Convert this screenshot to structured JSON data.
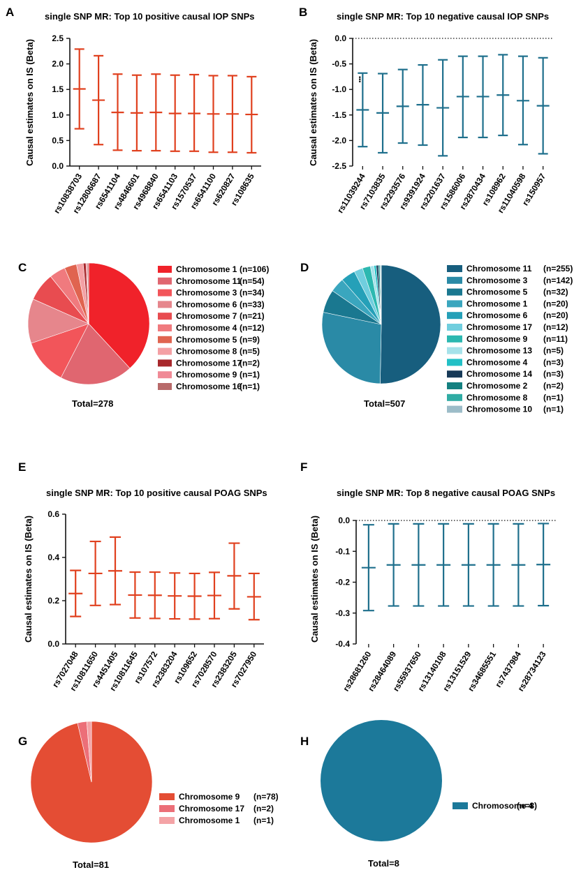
{
  "chart_data": [
    {
      "panel": "A",
      "type": "errorbar",
      "title": "single SNP MR: Top 10 positive causal IOP SNPs",
      "ylabel": "Causal estimates on IS (Beta)",
      "color": "#e0401e",
      "ylim": [
        0,
        2.5
      ],
      "yticks": [
        "2.5",
        "2.0",
        "1.5",
        "1.0",
        "0.5",
        "0.0"
      ],
      "categories": [
        "rs10838703",
        "rs12806687",
        "rs6541104",
        "rs4846601",
        "rs4968840",
        "rs6541103",
        "rs1570537",
        "rs6541100",
        "rs620827",
        "rs108635"
      ],
      "estimate": [
        1.51,
        1.29,
        1.05,
        1.04,
        1.05,
        1.03,
        1.03,
        1.02,
        1.02,
        1.01
      ],
      "lower": [
        0.73,
        0.42,
        0.31,
        0.3,
        0.3,
        0.29,
        0.29,
        0.27,
        0.27,
        0.26
      ],
      "upper": [
        2.29,
        2.16,
        1.8,
        1.78,
        1.8,
        1.78,
        1.79,
        1.77,
        1.77,
        1.75
      ]
    },
    {
      "panel": "B",
      "type": "errorbar",
      "title": "single SNP MR: Top 10 negative causal IOP SNPs",
      "ylabel": "Causal estimates on IS (Beta)",
      "color": "#1e6f8c",
      "ylim": [
        -2.5,
        0
      ],
      "yticks": [
        "0.0",
        "-0.5",
        "-1.0",
        "-1.5",
        "-2.0",
        "-2.5"
      ],
      "categories": [
        "rs11039244",
        "rs7103835",
        "rs2293576",
        "rs9391924",
        "rs2201637",
        "rs1586006",
        "rs2870434",
        "rs108962",
        "rs11040598",
        "rs150957"
      ],
      "estimate": [
        -1.4,
        -1.46,
        -1.33,
        -1.3,
        -1.36,
        -1.14,
        -1.14,
        -1.11,
        -1.22,
        -1.32
      ],
      "lower": [
        -2.12,
        -2.24,
        -2.05,
        -2.09,
        -2.3,
        -1.94,
        -1.94,
        -1.9,
        -2.08,
        -2.26
      ],
      "upper": [
        -0.68,
        -0.69,
        -0.61,
        -0.52,
        -0.42,
        -0.35,
        -0.35,
        -0.32,
        -0.35,
        -0.38
      ]
    },
    {
      "panel": "C",
      "type": "pie",
      "total": "Total=278",
      "labels": [
        "Chromosome 1",
        "Chromosome 11",
        "Chromosome 3",
        "Chromosome 6",
        "Chromosome 7",
        "Chromosome 4",
        "Chromosome 5",
        "Chromosome 8",
        "Chromosome 17",
        "Chromosome 9",
        "Chromosome 16"
      ],
      "counts": [
        "(n=106)",
        "(n=54)",
        "(n=34)",
        "(n=33)",
        "(n=21)",
        "(n=12)",
        "(n=9)",
        "(n=5)",
        "(n=2)",
        "(n=1)",
        "(n=1)"
      ],
      "values": [
        106,
        54,
        34,
        33,
        21,
        12,
        9,
        5,
        2,
        1,
        1
      ],
      "colors": [
        "#f0222a",
        "#e06670",
        "#f2555a",
        "#e6868c",
        "#e84c50",
        "#f07a7e",
        "#e06450",
        "#f4a0a4",
        "#a8282c",
        "#f08a96",
        "#b86a6a"
      ]
    },
    {
      "panel": "D",
      "type": "pie",
      "total": "Total=507",
      "labels": [
        "Chromosome 11",
        "Chromosome 3",
        "Chromosome 5",
        "Chromosome 1",
        "Chromosome 6",
        "Chromosome 17",
        "Chromosome 9",
        "Chromosome 13",
        "Chromosome 4",
        "Chromosome 14",
        "Chromosome 2",
        "Chromosome 8",
        "Chromosome 10"
      ],
      "counts": [
        "(n=255)",
        "(n=142)",
        "(n=32)",
        "(n=20)",
        "(n=20)",
        "(n=12)",
        "(n=11)",
        "(n=5)",
        "(n=3)",
        "(n=3)",
        "(n=2)",
        "(n=1)",
        "(n=1)"
      ],
      "values": [
        255,
        142,
        32,
        20,
        20,
        12,
        11,
        5,
        3,
        3,
        2,
        1,
        1
      ],
      "colors": [
        "#175e7e",
        "#2a8aa6",
        "#1a7890",
        "#3aa6be",
        "#25a0b8",
        "#70cede",
        "#2cb8b0",
        "#a6e2ea",
        "#22c0c6",
        "#173a58",
        "#148080",
        "#30aca4",
        "#9cbcc8"
      ]
    },
    {
      "panel": "E",
      "type": "errorbar",
      "title": "single SNP MR: Top 10 positive causal POAG SNPs",
      "ylabel": "Causal estimates on IS (Beta)",
      "color": "#e0401e",
      "ylim": [
        0,
        0.6
      ],
      "yticks": [
        "0.6",
        "0.4",
        "0.2",
        "0.0"
      ],
      "categories": [
        "rs7027048",
        "rs10811650",
        "rs4451405",
        "rs10811645",
        "rs107572",
        "rs2383204",
        "rs109652",
        "rs7028570",
        "rs2383205",
        "rs7027950"
      ],
      "estimate": [
        0.233,
        0.326,
        0.338,
        0.226,
        0.225,
        0.222,
        0.221,
        0.224,
        0.315,
        0.218
      ],
      "lower": [
        0.127,
        0.178,
        0.182,
        0.12,
        0.118,
        0.116,
        0.115,
        0.117,
        0.162,
        0.112
      ],
      "upper": [
        0.34,
        0.474,
        0.494,
        0.332,
        0.332,
        0.328,
        0.326,
        0.331,
        0.466,
        0.326
      ]
    },
    {
      "panel": "F",
      "type": "errorbar",
      "title": "single SNP MR: Top 8 negative causal POAG SNPs",
      "ylabel": "Causal estimates on IS (Beta)",
      "color": "#1e6f8c",
      "ylim": [
        -0.4,
        0
      ],
      "yticks": [
        "0.0",
        "-0.1",
        "-0.2",
        "-0.3",
        "-0.4"
      ],
      "categories": [
        "rs28681260",
        "rs28464089",
        "rs55937650",
        "rs13140108",
        "rs13151529",
        "rs34685551",
        "rs7437984",
        "rs28734123"
      ],
      "estimate": [
        -0.153,
        -0.144,
        -0.144,
        -0.144,
        -0.144,
        -0.144,
        -0.144,
        -0.143
      ],
      "lower": [
        -0.292,
        -0.277,
        -0.277,
        -0.277,
        -0.277,
        -0.277,
        -0.277,
        -0.276
      ],
      "upper": [
        -0.014,
        -0.011,
        -0.011,
        -0.011,
        -0.011,
        -0.011,
        -0.011,
        -0.01
      ]
    },
    {
      "panel": "G",
      "type": "pie",
      "total": "Total=81",
      "labels": [
        "Chromosome 9",
        "Chromosome 17",
        "Chromosome 1"
      ],
      "counts": [
        "(n=78)",
        "(n=2)",
        "(n=1)"
      ],
      "values": [
        78,
        2,
        1
      ],
      "colors": [
        "#e44d34",
        "#ec6f78",
        "#f4a3a6"
      ]
    },
    {
      "panel": "H",
      "type": "pie",
      "total": "Total=8",
      "labels": [
        "Chromosome 4"
      ],
      "counts": [
        "(n=8)"
      ],
      "values": [
        8
      ],
      "colors": [
        "#1c799a"
      ]
    }
  ]
}
